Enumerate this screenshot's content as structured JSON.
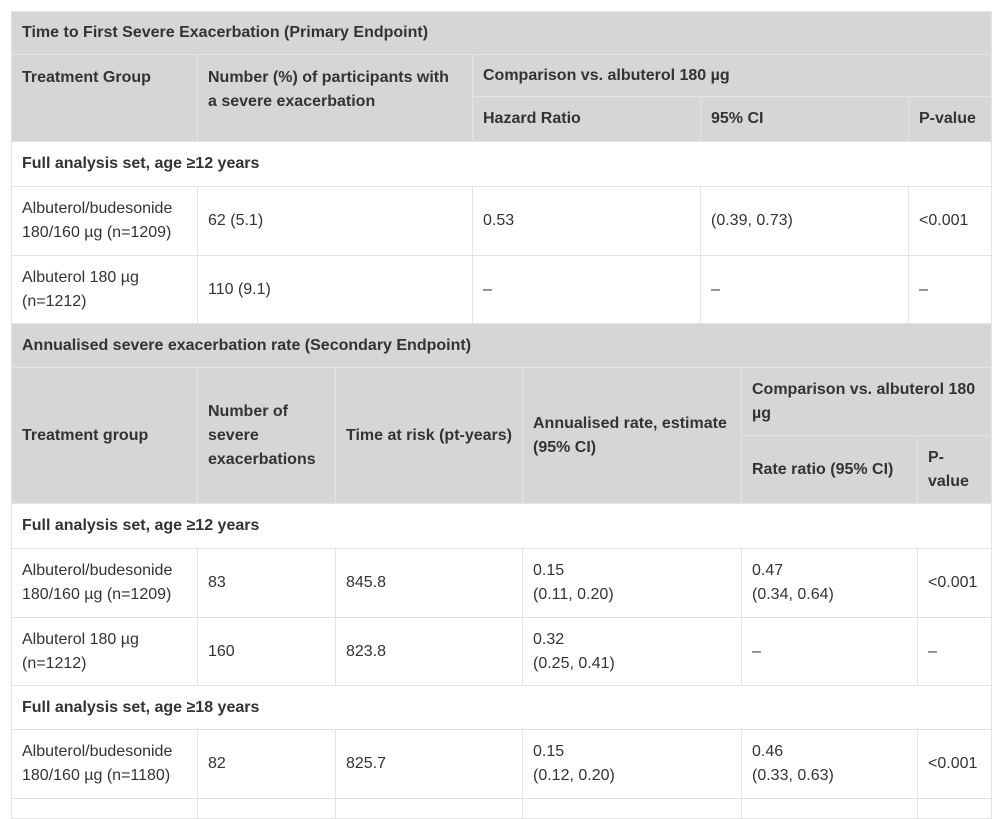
{
  "primary": {
    "title": "Time to First Severe Exacerbation (Primary Endpoint)",
    "headers": {
      "treatment_group": "Treatment Group",
      "number_pct": "Number (%) of participants with a severe exacerbation",
      "comparison": "Comparison vs. albuterol 180 µg",
      "hazard_ratio": "Hazard Ratio",
      "ci": "95% CI",
      "pvalue": "P-value"
    },
    "section": "Full analysis set, age ≥12 years",
    "rows": [
      {
        "group": "Albuterol/budesonide 180/160 µg (n=1209)",
        "number": "62 (5.1)",
        "hr": "0.53",
        "ci": "(0.39, 0.73)",
        "p": "<0.001"
      },
      {
        "group": "Albuterol 180 µg (n=1212)",
        "number": "110 (9.1)",
        "hr": "–",
        "ci": "–",
        "p": "–"
      }
    ]
  },
  "secondary": {
    "title": "Annualised severe exacerbation rate (Secondary Endpoint)",
    "headers": {
      "treatment_group": "Treatment group",
      "number": "Number of severe exacerbations",
      "time": "Time at risk (pt-years)",
      "rate": "Annualised rate, estimate (95% CI)",
      "comparison": "Comparison vs. albuterol 180 µg",
      "rate_ratio": "Rate ratio (95% CI)",
      "pvalue": "P-value"
    },
    "sections": [
      {
        "label": "Full analysis set, age ≥12 years",
        "rows": [
          {
            "group": "Albuterol/budesonide 180/160 µg (n=1209)",
            "number": "83",
            "time": "845.8",
            "rate_est": "0.15",
            "rate_ci": "(0.11, 0.20)",
            "ratio_est": "0.47",
            "ratio_ci": "(0.34, 0.64)",
            "p": "<0.001"
          },
          {
            "group": "Albuterol 180 µg (n=1212)",
            "number": "160",
            "time": "823.8",
            "rate_est": "0.32",
            "rate_ci": "(0.25, 0.41)",
            "ratio_est": "–",
            "ratio_ci": "",
            "p": "–"
          }
        ]
      },
      {
        "label": "Full analysis set, age ≥18 years",
        "rows": [
          {
            "group": "Albuterol/budesonide 180/160 µg (n=1180)",
            "number": "82",
            "time": "825.7",
            "rate_est": "0.15",
            "rate_ci": "(0.12, 0.20)",
            "ratio_est": "0.46",
            "ratio_ci": "(0.33, 0.63)",
            "p": "<0.001"
          }
        ]
      }
    ]
  }
}
